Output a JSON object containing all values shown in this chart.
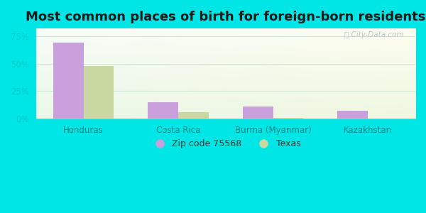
{
  "title": "Most common places of birth for foreign-born residents",
  "categories": [
    "Honduras",
    "Costa Rica",
    "Burma (Myanmar)",
    "Kazakhstan"
  ],
  "zip_values": [
    69.0,
    15.0,
    11.0,
    7.0
  ],
  "texas_values": [
    48.0,
    6.0,
    0.5,
    0.3
  ],
  "zip_color": "#c9a0dc",
  "texas_color": "#c8d8a0",
  "bg_color": "#00e5e5",
  "plot_bg_top_left": "#e8f5ec",
  "plot_bg_top_right": "#f5fffd",
  "plot_bg_bottom_right": "#e0f0e8",
  "yticks": [
    0,
    25,
    50,
    75
  ],
  "ylim": [
    0,
    82
  ],
  "legend_zip": "Zip code 75568",
  "legend_texas": "Texas",
  "bar_width": 0.32,
  "title_fontsize": 13,
  "tick_label_color": "#00cccc",
  "x_label_color": "#008888",
  "grid_color": "#d0e8d8",
  "watermark": "City-Data.com"
}
